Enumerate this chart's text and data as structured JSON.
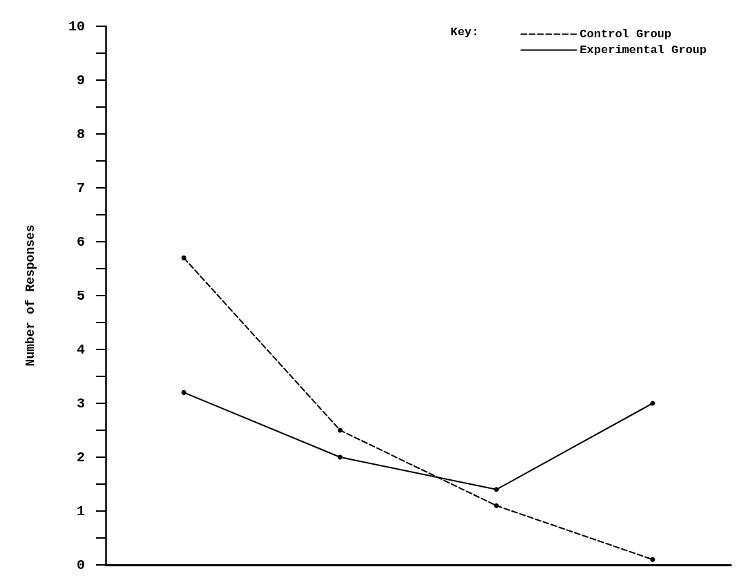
{
  "chart_data": {
    "type": "line",
    "ylabel": "Number of Responses",
    "legend_title": "Key:",
    "categories": [
      null,
      null,
      null,
      null
    ],
    "series": [
      {
        "name": "Control Group",
        "color": "#000000",
        "line_style": "dashed",
        "values": [
          5.7,
          2.5,
          1.1,
          0.1
        ]
      },
      {
        "name": "Experimental Group",
        "color": "#000000",
        "line_style": "solid",
        "values": [
          3.2,
          2.0,
          1.4,
          3.0
        ]
      }
    ],
    "ylim": [
      0,
      10
    ],
    "yticks": [
      0,
      {
        "value": 0.5,
        "label": null
      },
      1,
      {
        "value": 1.5,
        "label": null
      },
      2,
      {
        "value": 2.5,
        "label": null
      },
      3,
      {
        "value": 3.5,
        "label": null
      },
      4,
      {
        "value": 4.5,
        "label": null
      },
      5,
      {
        "value": 5.5,
        "label": null
      },
      6,
      {
        "value": 6.5,
        "label": null
      },
      7,
      {
        "value": 7.5,
        "label": null
      },
      8,
      {
        "value": 8.5,
        "label": null
      },
      9,
      {
        "value": 9.5,
        "label": null
      },
      10
    ],
    "marker": "circle",
    "legend": "top right",
    "grid": false
  }
}
